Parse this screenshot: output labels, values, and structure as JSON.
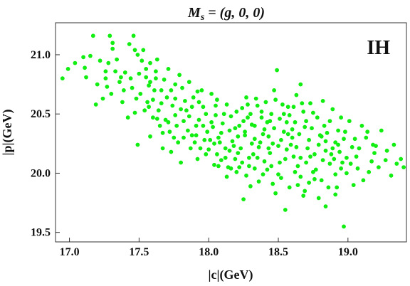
{
  "chart_data": {
    "type": "scatter",
    "title": "M_s = (g, 0, 0)",
    "title_parts": {
      "var": "M",
      "sub": "s",
      "rest": " = (g, 0, 0)"
    },
    "annotation": "IH",
    "xlabel": "|c|(GeV)",
    "ylabel": "|p|(GeV)",
    "xlim": [
      16.9,
      19.42
    ],
    "ylim": [
      19.42,
      21.27
    ],
    "xticks": [
      "17.0",
      "17.5",
      "18.0",
      "18.5",
      "19.0"
    ],
    "yticks": [
      "19.5",
      "20.0",
      "20.5",
      "21.0"
    ],
    "grid": false,
    "point_color": "#11ee11",
    "series": [
      {
        "points": [
          [
            16.95,
            20.8
          ],
          [
            16.99,
            20.88
          ],
          [
            17.04,
            20.93
          ],
          [
            17.11,
            20.89
          ],
          [
            17.15,
            20.99
          ],
          [
            17.17,
            21.16
          ],
          [
            17.26,
            20.86
          ],
          [
            17.24,
            20.63
          ],
          [
            17.27,
            20.73
          ],
          [
            17.29,
            21.16
          ],
          [
            17.31,
            21.05
          ],
          [
            17.36,
            20.77
          ],
          [
            17.39,
            20.7
          ],
          [
            17.42,
            20.47
          ],
          [
            17.46,
            21.16
          ],
          [
            17.49,
            21.0
          ],
          [
            17.52,
            20.95
          ],
          [
            17.55,
            20.88
          ],
          [
            17.58,
            20.77
          ],
          [
            17.6,
            20.62
          ],
          [
            17.63,
            20.46
          ],
          [
            17.67,
            20.34
          ],
          [
            17.7,
            20.64
          ],
          [
            17.73,
            20.7
          ],
          [
            17.76,
            20.63
          ],
          [
            17.8,
            20.54
          ],
          [
            17.83,
            20.61
          ],
          [
            17.86,
            20.48
          ],
          [
            17.88,
            20.32
          ],
          [
            17.9,
            20.26
          ],
          [
            17.93,
            20.45
          ],
          [
            17.96,
            20.56
          ],
          [
            17.99,
            20.35
          ],
          [
            18.02,
            20.43
          ],
          [
            18.06,
            20.16
          ],
          [
            18.09,
            20.34
          ],
          [
            18.12,
            20.21
          ],
          [
            18.15,
            20.36
          ],
          [
            18.18,
            20.23
          ],
          [
            18.21,
            20.31
          ],
          [
            18.24,
            20.55
          ],
          [
            18.27,
            20.64
          ],
          [
            18.3,
            20.5
          ],
          [
            18.33,
            20.4
          ],
          [
            18.36,
            20.22
          ],
          [
            18.39,
            20.33
          ],
          [
            18.42,
            20.43
          ],
          [
            18.45,
            20.5
          ],
          [
            18.48,
            20.62
          ],
          [
            18.51,
            20.46
          ],
          [
            18.54,
            20.35
          ],
          [
            18.57,
            20.56
          ],
          [
            18.6,
            20.3
          ],
          [
            18.63,
            20.66
          ],
          [
            18.66,
            20.75
          ],
          [
            18.69,
            20.39
          ],
          [
            18.72,
            20.28
          ],
          [
            18.76,
            20.16
          ],
          [
            18.8,
            20.32
          ],
          [
            18.84,
            20.27
          ],
          [
            18.87,
            20.08
          ],
          [
            18.91,
            20.26
          ],
          [
            18.95,
            20.04
          ],
          [
            18.99,
            20.0
          ],
          [
            19.02,
            20.08
          ],
          [
            19.06,
            20.14
          ],
          [
            19.1,
            20.4
          ],
          [
            19.13,
            20.3
          ],
          [
            19.17,
            20.1
          ],
          [
            19.2,
            20.23
          ],
          [
            19.24,
            20.36
          ],
          [
            19.27,
            20.11
          ],
          [
            19.31,
            19.98
          ],
          [
            19.35,
            20.08
          ],
          [
            19.38,
            20.12
          ],
          [
            19.4,
            20.05
          ],
          [
            18.97,
            19.55
          ],
          [
            18.55,
            19.69
          ],
          [
            18.25,
            19.78
          ],
          [
            18.46,
            19.91
          ],
          [
            18.68,
            19.81
          ],
          [
            18.84,
            19.72
          ],
          [
            18.91,
            19.82
          ],
          [
            19.04,
            19.9
          ],
          [
            18.76,
            19.95
          ],
          [
            18.62,
            20.01
          ],
          [
            18.42,
            20.03
          ],
          [
            18.3,
            19.89
          ],
          [
            18.2,
            20.01
          ],
          [
            18.13,
            19.97
          ],
          [
            18.04,
            20.07
          ],
          [
            17.92,
            20.12
          ],
          [
            17.8,
            20.09
          ],
          [
            17.73,
            20.18
          ],
          [
            17.67,
            20.21
          ],
          [
            17.58,
            20.31
          ],
          [
            17.49,
            20.24
          ],
          [
            17.47,
            20.51
          ],
          [
            17.4,
            20.85
          ],
          [
            17.34,
            20.96
          ],
          [
            17.31,
            21.1
          ],
          [
            17.2,
            20.75
          ],
          [
            17.19,
            20.58
          ],
          [
            17.43,
            21.09
          ],
          [
            17.53,
            21.04
          ],
          [
            17.58,
            20.93
          ],
          [
            17.62,
            20.86
          ],
          [
            17.66,
            20.7
          ],
          [
            17.71,
            20.88
          ],
          [
            17.79,
            20.83
          ],
          [
            17.86,
            20.77
          ],
          [
            17.95,
            20.7
          ],
          [
            18.02,
            20.67
          ],
          [
            18.05,
            20.57
          ],
          [
            18.11,
            20.5
          ],
          [
            18.16,
            20.48
          ],
          [
            18.22,
            20.4
          ],
          [
            18.26,
            20.32
          ],
          [
            18.31,
            20.25
          ],
          [
            18.35,
            20.13
          ],
          [
            18.4,
            20.1
          ],
          [
            18.44,
            20.17
          ],
          [
            18.5,
            20.23
          ],
          [
            18.56,
            20.2
          ],
          [
            18.61,
            20.14
          ],
          [
            18.64,
            20.06
          ],
          [
            18.7,
            20.09
          ],
          [
            18.75,
            20.01
          ],
          [
            18.82,
            20.11
          ],
          [
            18.88,
            20.16
          ],
          [
            18.93,
            20.24
          ],
          [
            18.98,
            20.35
          ],
          [
            19.01,
            20.44
          ],
          [
            18.95,
            20.47
          ],
          [
            18.89,
            20.54
          ],
          [
            18.83,
            20.4
          ],
          [
            18.78,
            20.47
          ],
          [
            18.73,
            20.59
          ],
          [
            18.68,
            20.52
          ],
          [
            18.62,
            20.43
          ],
          [
            18.58,
            20.49
          ],
          [
            18.53,
            20.58
          ],
          [
            18.47,
            20.7
          ],
          [
            18.41,
            20.6
          ],
          [
            18.38,
            20.52
          ],
          [
            18.34,
            20.63
          ],
          [
            18.28,
            20.47
          ],
          [
            18.23,
            20.21
          ],
          [
            18.19,
            20.12
          ],
          [
            18.14,
            20.05
          ],
          [
            18.08,
            20.26
          ],
          [
            18.0,
            20.2
          ],
          [
            17.97,
            20.28
          ],
          [
            17.91,
            20.4
          ],
          [
            17.85,
            20.36
          ],
          [
            17.82,
            20.44
          ],
          [
            17.77,
            20.4
          ],
          [
            17.75,
            20.3
          ],
          [
            17.69,
            20.45
          ],
          [
            17.64,
            20.53
          ],
          [
            17.61,
            20.7
          ],
          [
            17.56,
            20.6
          ],
          [
            17.51,
            20.67
          ],
          [
            17.45,
            20.72
          ],
          [
            17.38,
            20.6
          ],
          [
            17.33,
            20.86
          ],
          [
            17.28,
            20.93
          ],
          [
            17.22,
            20.95
          ],
          [
            17.12,
            20.81
          ],
          [
            17.1,
            20.98
          ],
          [
            17.55,
            20.81
          ],
          [
            17.63,
            20.96
          ],
          [
            17.68,
            20.79
          ],
          [
            17.74,
            20.57
          ],
          [
            17.81,
            20.72
          ],
          [
            17.89,
            20.64
          ],
          [
            17.93,
            20.6
          ],
          [
            17.98,
            20.5
          ],
          [
            18.03,
            20.39
          ],
          [
            18.07,
            20.3
          ],
          [
            18.1,
            20.42
          ],
          [
            18.17,
            20.27
          ],
          [
            18.21,
            20.17
          ],
          [
            18.24,
            20.09
          ],
          [
            18.29,
            20.13
          ],
          [
            18.33,
            20.04
          ],
          [
            18.37,
            20.26
          ],
          [
            18.43,
            20.31
          ],
          [
            18.47,
            20.38
          ],
          [
            18.52,
            20.28
          ],
          [
            18.55,
            20.12
          ],
          [
            18.59,
            20.24
          ],
          [
            18.65,
            20.33
          ],
          [
            18.71,
            20.21
          ],
          [
            18.74,
            20.38
          ],
          [
            18.79,
            20.24
          ],
          [
            18.85,
            20.34
          ],
          [
            18.9,
            20.12
          ],
          [
            18.94,
            20.18
          ],
          [
            18.97,
            20.29
          ],
          [
            19.03,
            20.22
          ],
          [
            19.07,
            20.04
          ],
          [
            19.11,
            19.94
          ],
          [
            19.15,
            20.01
          ],
          [
            19.19,
            20.17
          ],
          [
            19.22,
            20.05
          ],
          [
            18.86,
            19.88
          ],
          [
            18.79,
            19.79
          ],
          [
            18.72,
            19.92
          ],
          [
            18.66,
            19.97
          ],
          [
            18.58,
            19.88
          ],
          [
            18.52,
            19.96
          ],
          [
            18.48,
            19.83
          ],
          [
            18.36,
            19.93
          ],
          [
            18.27,
            19.98
          ],
          [
            18.16,
            20.04
          ],
          [
            18.09,
            20.11
          ],
          [
            17.98,
            20.16
          ],
          [
            17.87,
            20.21
          ],
          [
            17.78,
            20.26
          ],
          [
            17.72,
            20.35
          ],
          [
            17.65,
            20.4
          ],
          [
            17.6,
            20.47
          ],
          [
            17.54,
            20.53
          ],
          [
            17.48,
            20.63
          ],
          [
            17.44,
            20.8
          ],
          [
            17.37,
            20.81
          ],
          [
            17.3,
            20.67
          ],
          [
            17.26,
            20.8
          ],
          [
            17.47,
            21.04
          ],
          [
            17.57,
            20.74
          ],
          [
            17.84,
            20.53
          ],
          [
            18.28,
            20.58
          ],
          [
            18.49,
            20.87
          ],
          [
            18.56,
            20.43
          ],
          [
            18.82,
            20.61
          ],
          [
            18.87,
            20.44
          ],
          [
            18.93,
            20.36
          ],
          [
            18.66,
            20.13
          ],
          [
            18.38,
            20.47
          ],
          [
            18.33,
            20.29
          ],
          [
            18.19,
            20.38
          ],
          [
            18.63,
            20.22
          ],
          [
            18.45,
            20.06
          ],
          [
            18.69,
            19.85
          ],
          [
            18.81,
            19.94
          ],
          [
            18.91,
            19.99
          ],
          [
            19.08,
            20.21
          ],
          [
            19.14,
            20.35
          ],
          [
            17.96,
            20.4
          ],
          [
            18.01,
            20.28
          ],
          [
            18.12,
            20.13
          ],
          [
            18.26,
            20.35
          ],
          [
            18.4,
            20.37
          ],
          [
            18.51,
            20.09
          ],
          [
            18.73,
            20.14
          ],
          [
            18.77,
            20.03
          ],
          [
            18.6,
            20.37
          ],
          [
            18.43,
            20.21
          ],
          [
            18.35,
            20.57
          ],
          [
            18.25,
            20.44
          ],
          [
            18.05,
            20.49
          ],
          [
            17.88,
            20.56
          ],
          [
            17.71,
            20.43
          ],
          [
            17.82,
            20.3
          ],
          [
            17.94,
            20.21
          ],
          [
            18.07,
            20.06
          ],
          [
            18.22,
            20.05
          ],
          [
            18.32,
            20.16
          ],
          [
            18.46,
            20.25
          ],
          [
            18.57,
            20.33
          ],
          [
            18.7,
            20.44
          ],
          [
            18.84,
            20.19
          ],
          [
            18.99,
            20.13
          ],
          [
            18.92,
            19.88
          ],
          [
            18.64,
            19.9
          ],
          [
            18.5,
            19.99
          ],
          [
            18.39,
            19.99
          ],
          [
            18.29,
            20.06
          ],
          [
            18.15,
            20.19
          ],
          [
            18.04,
            20.25
          ],
          [
            17.91,
            20.32
          ],
          [
            17.76,
            20.49
          ],
          [
            17.66,
            20.59
          ],
          [
            17.57,
            20.56
          ],
          [
            17.5,
            20.84
          ],
          [
            17.62,
            20.8
          ],
          [
            17.76,
            20.75
          ],
          [
            17.92,
            20.69
          ],
          [
            18.06,
            20.62
          ],
          [
            18.13,
            20.58
          ],
          [
            18.2,
            20.52
          ],
          [
            18.31,
            20.41
          ],
          [
            18.44,
            20.44
          ],
          [
            18.54,
            20.5
          ],
          [
            18.67,
            20.59
          ],
          [
            18.61,
            20.56
          ],
          [
            18.75,
            20.51
          ],
          [
            18.81,
            20.31
          ],
          [
            18.89,
            20.21
          ],
          [
            18.96,
            20.09
          ],
          [
            19.05,
            20.29
          ],
          [
            19.18,
            20.24
          ],
          [
            19.28,
            20.19
          ],
          [
            19.33,
            20.24
          ]
        ]
      }
    ]
  }
}
